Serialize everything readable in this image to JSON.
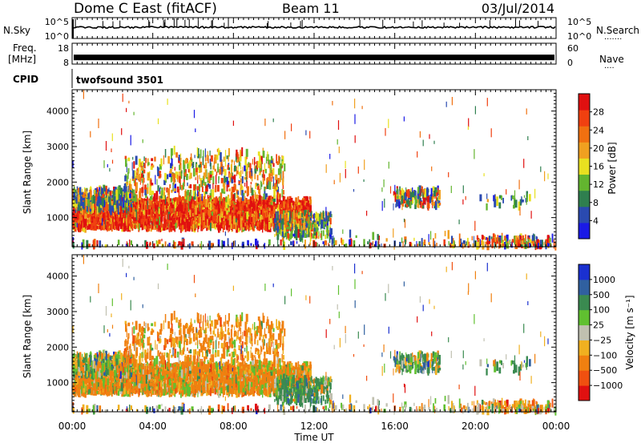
{
  "header": {
    "title": "Dome C East (fitACF)",
    "beam": "Beam 11",
    "date": "03/Jul/2014"
  },
  "side_labels": {
    "nsky": "N.Sky",
    "nsearch": "N.Search",
    "freq_line1": "Freq.",
    "freq_line2": "[MHz]",
    "nave": "Nave",
    "cpid": "CPID"
  },
  "cpid_value": "twofsound 3501",
  "colors": {
    "power_scale": [
      "#1a1ae6",
      "#2a4ab0",
      "#2f7f4f",
      "#63b52f",
      "#e8e020",
      "#f0a020",
      "#f07010",
      "#f04010",
      "#e01010"
    ],
    "velocity_scale": [
      "#e01010",
      "#f05010",
      "#f08010",
      "#f0b020",
      "#c0c0b0",
      "#60c030",
      "#3a8a50",
      "#3060a0",
      "#1a30d0"
    ],
    "trace": "#000000",
    "background": "#ffffff"
  },
  "chart_data": [
    {
      "type": "line",
      "name": "nsky-panel",
      "y_tick_labels": [
        "10^5",
        "10^0"
      ],
      "right_tick_labels": [
        "10^5",
        "10^0"
      ],
      "description_series": "N.Sky noise trace"
    },
    {
      "type": "line",
      "name": "freq-panel",
      "y_tick_labels": [
        "18",
        "8"
      ],
      "right_tick_labels": [
        "60",
        "0"
      ],
      "ylim": [
        8,
        18
      ],
      "approx_value": 11
    },
    {
      "type": "heatmap",
      "name": "power-panel",
      "ylabel": "Slant Range [km]",
      "yticks": [
        1000,
        2000,
        3000,
        4000
      ],
      "ylim": [
        180,
        4600
      ],
      "xlim": [
        0,
        24
      ],
      "colorbar": {
        "label": "Power [dB]",
        "ticks": [
          4,
          8,
          12,
          16,
          20,
          24,
          28
        ],
        "range": [
          0,
          32
        ]
      }
    },
    {
      "type": "heatmap",
      "name": "velocity-panel",
      "ylabel": "Slant Range [km]",
      "yticks": [
        1000,
        2000,
        3000,
        4000
      ],
      "ylim": [
        180,
        4600
      ],
      "xlim": [
        0,
        24
      ],
      "colorbar": {
        "label": "Velocity [m s⁻¹]",
        "ticks": [
          "1000",
          "500",
          "100",
          "25",
          "−25",
          "−100",
          "−500",
          "−1000"
        ]
      }
    }
  ],
  "xaxis": {
    "label": "Time UT",
    "ticks": [
      0,
      4,
      8,
      12,
      16,
      20,
      24
    ],
    "tick_labels": [
      "00:00",
      "04:00",
      "08:00",
      "12:00",
      "16:00",
      "20:00",
      "00:00"
    ]
  }
}
